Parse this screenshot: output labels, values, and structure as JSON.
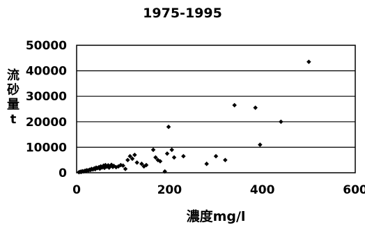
{
  "chart_data": {
    "type": "scatter",
    "title": "1975-1995",
    "xlabel": "濃度mg/l",
    "ylabel_chars": [
      "流",
      "砂",
      "量",
      "t"
    ],
    "xlim": [
      0,
      600
    ],
    "ylim": [
      0,
      50000
    ],
    "x_ticks": [
      "0",
      "200",
      "400",
      "600"
    ],
    "y_ticks": [
      "0",
      "10000",
      "20000",
      "30000",
      "40000",
      "50000"
    ],
    "grid": "horizontal",
    "legend": "none",
    "marker_color": "#000000",
    "points": [
      [
        5,
        200
      ],
      [
        8,
        400
      ],
      [
        10,
        300
      ],
      [
        12,
        600
      ],
      [
        15,
        500
      ],
      [
        18,
        800
      ],
      [
        20,
        700
      ],
      [
        22,
        1000
      ],
      [
        25,
        900
      ],
      [
        28,
        1200
      ],
      [
        30,
        1100
      ],
      [
        32,
        1500
      ],
      [
        35,
        1300
      ],
      [
        38,
        1700
      ],
      [
        40,
        1400
      ],
      [
        42,
        2000
      ],
      [
        45,
        1800
      ],
      [
        48,
        2200
      ],
      [
        50,
        1600
      ],
      [
        52,
        2500
      ],
      [
        55,
        2100
      ],
      [
        58,
        2800
      ],
      [
        60,
        1900
      ],
      [
        62,
        3000
      ],
      [
        65,
        2400
      ],
      [
        68,
        2900
      ],
      [
        70,
        2000
      ],
      [
        72,
        2600
      ],
      [
        75,
        3100
      ],
      [
        78,
        2300
      ],
      [
        80,
        2700
      ],
      [
        85,
        2200
      ],
      [
        90,
        2500
      ],
      [
        95,
        3000
      ],
      [
        100,
        2800
      ],
      [
        105,
        1500
      ],
      [
        110,
        5000
      ],
      [
        115,
        6500
      ],
      [
        120,
        5500
      ],
      [
        125,
        7000
      ],
      [
        130,
        4000
      ],
      [
        140,
        3500
      ],
      [
        145,
        2500
      ],
      [
        150,
        3000
      ],
      [
        165,
        9000
      ],
      [
        170,
        6000
      ],
      [
        175,
        5000
      ],
      [
        180,
        4500
      ],
      [
        190,
        500
      ],
      [
        195,
        7500
      ],
      [
        198,
        18000
      ],
      [
        205,
        9000
      ],
      [
        210,
        6000
      ],
      [
        230,
        6500
      ],
      [
        280,
        3500
      ],
      [
        300,
        6500
      ],
      [
        320,
        5000
      ],
      [
        340,
        26500
      ],
      [
        385,
        25500
      ],
      [
        395,
        11000
      ],
      [
        440,
        20000
      ],
      [
        500,
        43500
      ]
    ]
  }
}
